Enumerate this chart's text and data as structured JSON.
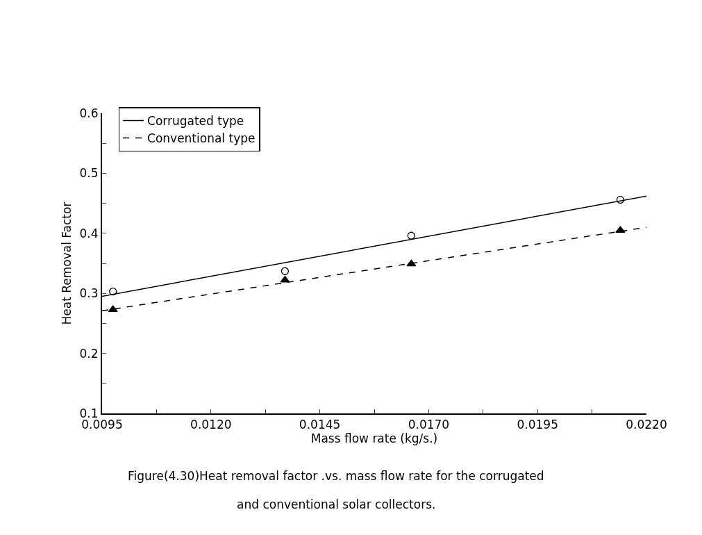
{
  "chart_data": {
    "type": "line",
    "xlabel": "Mass flow rate (kg/s.)",
    "ylabel": "Heat Removal Factor",
    "xlim": [
      0.0095,
      0.022
    ],
    "xticks": [
      {
        "value": 0.0095,
        "label": "0.0095"
      },
      {
        "value": 0.01075,
        "label": null
      },
      {
        "value": 0.012,
        "label": "0.0120"
      },
      {
        "value": 0.01325,
        "label": null
      },
      {
        "value": 0.0145,
        "label": "0.0145"
      },
      {
        "value": 0.01575,
        "label": null
      },
      {
        "value": 0.017,
        "label": "0.0170"
      },
      {
        "value": 0.01825,
        "label": null
      },
      {
        "value": 0.0195,
        "label": "0.0195"
      },
      {
        "value": 0.02075,
        "label": null
      },
      {
        "value": 0.022,
        "label": "0.0220"
      }
    ],
    "ylim": [
      0.1,
      0.6
    ],
    "yticks": [
      {
        "value": 0.1,
        "label": "0.1"
      },
      {
        "value": 0.15,
        "label": null
      },
      {
        "value": 0.2,
        "label": "0.2"
      },
      {
        "value": 0.25,
        "label": null
      },
      {
        "value": 0.3,
        "label": "0.3"
      },
      {
        "value": 0.35,
        "label": null
      },
      {
        "value": 0.4,
        "label": "0.4"
      },
      {
        "value": 0.45,
        "label": null
      },
      {
        "value": 0.5,
        "label": "0.5"
      },
      {
        "value": 0.55,
        "label": null
      },
      {
        "value": 0.6,
        "label": "0.6"
      }
    ],
    "grid": false,
    "legend": "top left",
    "series": [
      {
        "name": "Corrugated type",
        "line_style": "solid",
        "marker": "none",
        "color": "#000000",
        "x": [
          0.0095,
          0.022
        ],
        "values": [
          0.295,
          0.462
        ]
      },
      {
        "name": "Conventional type",
        "line_style": "dashed",
        "marker": "none",
        "color": "#000000",
        "x": [
          0.0095,
          0.022
        ],
        "values": [
          0.271,
          0.41
        ]
      },
      {
        "type": "scatter",
        "marker": "circle",
        "color": "#000000",
        "x": [
          0.00975,
          0.0137,
          0.0166,
          0.0214
        ],
        "values": [
          0.303,
          0.337,
          0.396,
          0.456
        ]
      },
      {
        "type": "scatter",
        "marker": "triangle",
        "color": "#000000",
        "x": [
          0.00975,
          0.0137,
          0.0166,
          0.0214
        ],
        "values": [
          0.273,
          0.322,
          0.349,
          0.405
        ]
      }
    ],
    "annotations": [
      "Figure(4.30)Heat removal factor .vs. mass flow rate for the corrugated",
      "and conventional solar collectors."
    ]
  }
}
